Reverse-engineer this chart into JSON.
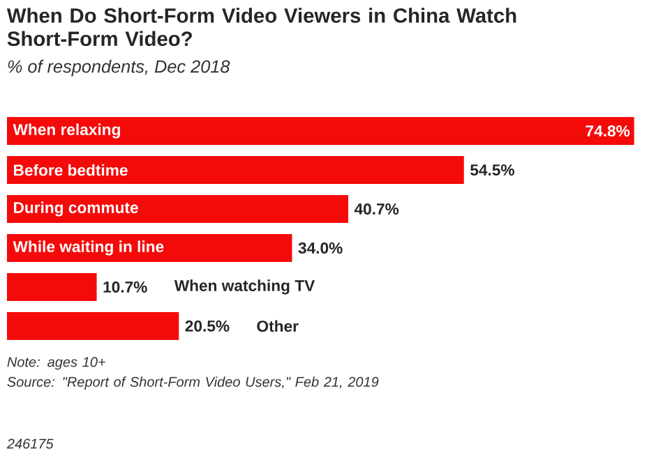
{
  "chart_data": {
    "type": "bar",
    "orientation": "horizontal",
    "title": "When Do Short-Form Video Viewers in China Watch Short-Form Video?",
    "subtitle": "% of respondents, Dec 2018",
    "categories": [
      "When relaxing",
      "Before bedtime",
      "During commute",
      "While waiting in line",
      "When watching TV",
      "Other"
    ],
    "values": [
      74.8,
      54.5,
      40.7,
      34.0,
      10.7,
      20.5
    ],
    "value_labels": [
      "74.8%",
      "54.5%",
      "40.7%",
      "34.0%",
      "10.7%",
      "20.5%"
    ],
    "color": "#f50a0a",
    "annotations": [
      "Note: ages 10+",
      "Source: \"Report of Short-Form Video Users,\" Feb 21, 2019",
      "246175"
    ]
  }
}
